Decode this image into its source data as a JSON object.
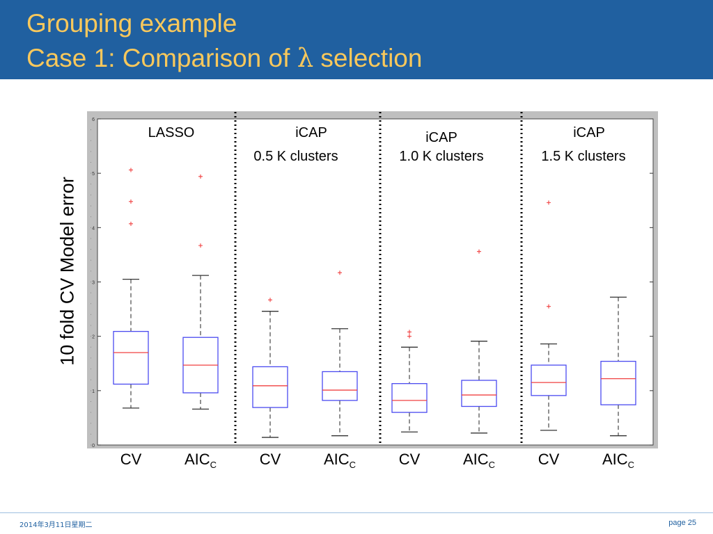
{
  "slide": {
    "title_line1": "Grouping example",
    "title_line2_before": "Case 1: Comparison of ",
    "title_lambda": "λ",
    "title_line2_after": " selection",
    "footer_date": "2014年3月11日星期二",
    "footer_page": "page 25"
  },
  "colors": {
    "header_bg": "#2060a0",
    "title_text": "#f8c85c",
    "box": "#4a4af0",
    "median": "#f04040",
    "outlier": "#f04040",
    "whisker": "#555555",
    "frame_bg": "#bfbfbf"
  },
  "chart_data": {
    "type": "boxplot",
    "ylabel": "10 fold CV Model error",
    "ylim": [
      0,
      6
    ],
    "yticks": [
      0,
      1,
      2,
      3,
      4,
      5,
      6
    ],
    "panels": [
      {
        "title_lines": [
          "LASSO"
        ]
      },
      {
        "title_lines": [
          "iCAP",
          "0.5 K clusters"
        ]
      },
      {
        "title_lines": [
          "iCAP",
          "1.0 K clusters"
        ]
      },
      {
        "title_lines": [
          "iCAP",
          "1.5 K clusters"
        ]
      }
    ],
    "categories": [
      {
        "label": "CV",
        "sub": "",
        "panel": 0,
        "lower_whisker": 0.68,
        "q1": 1.12,
        "median": 1.7,
        "q3": 2.09,
        "upper_whisker": 3.05,
        "outliers": [
          4.07,
          4.48,
          5.06
        ]
      },
      {
        "label": "AIC",
        "sub": "C",
        "panel": 0,
        "lower_whisker": 0.66,
        "q1": 0.96,
        "median": 1.47,
        "q3": 1.98,
        "upper_whisker": 3.12,
        "outliers": [
          3.67,
          4.94
        ]
      },
      {
        "label": "CV",
        "sub": "",
        "panel": 1,
        "lower_whisker": 0.14,
        "q1": 0.69,
        "median": 1.09,
        "q3": 1.44,
        "upper_whisker": 2.46,
        "outliers": [
          2.67
        ]
      },
      {
        "label": "AIC",
        "sub": "C",
        "panel": 1,
        "lower_whisker": 0.17,
        "q1": 0.82,
        "median": 1.01,
        "q3": 1.35,
        "upper_whisker": 2.14,
        "outliers": [
          3.17
        ]
      },
      {
        "label": "CV",
        "sub": "",
        "panel": 2,
        "lower_whisker": 0.24,
        "q1": 0.6,
        "median": 0.82,
        "q3": 1.13,
        "upper_whisker": 1.8,
        "outliers": [
          2.0,
          2.08
        ]
      },
      {
        "label": "AIC",
        "sub": "C",
        "panel": 2,
        "lower_whisker": 0.22,
        "q1": 0.71,
        "median": 0.92,
        "q3": 1.19,
        "upper_whisker": 1.91,
        "outliers": [
          3.56
        ]
      },
      {
        "label": "CV",
        "sub": "",
        "panel": 3,
        "lower_whisker": 0.27,
        "q1": 0.91,
        "median": 1.15,
        "q3": 1.47,
        "upper_whisker": 1.86,
        "outliers": [
          2.55,
          4.46
        ]
      },
      {
        "label": "AIC",
        "sub": "C",
        "panel": 3,
        "lower_whisker": 0.17,
        "q1": 0.74,
        "median": 1.22,
        "q3": 1.54,
        "upper_whisker": 2.72,
        "outliers": []
      }
    ]
  }
}
